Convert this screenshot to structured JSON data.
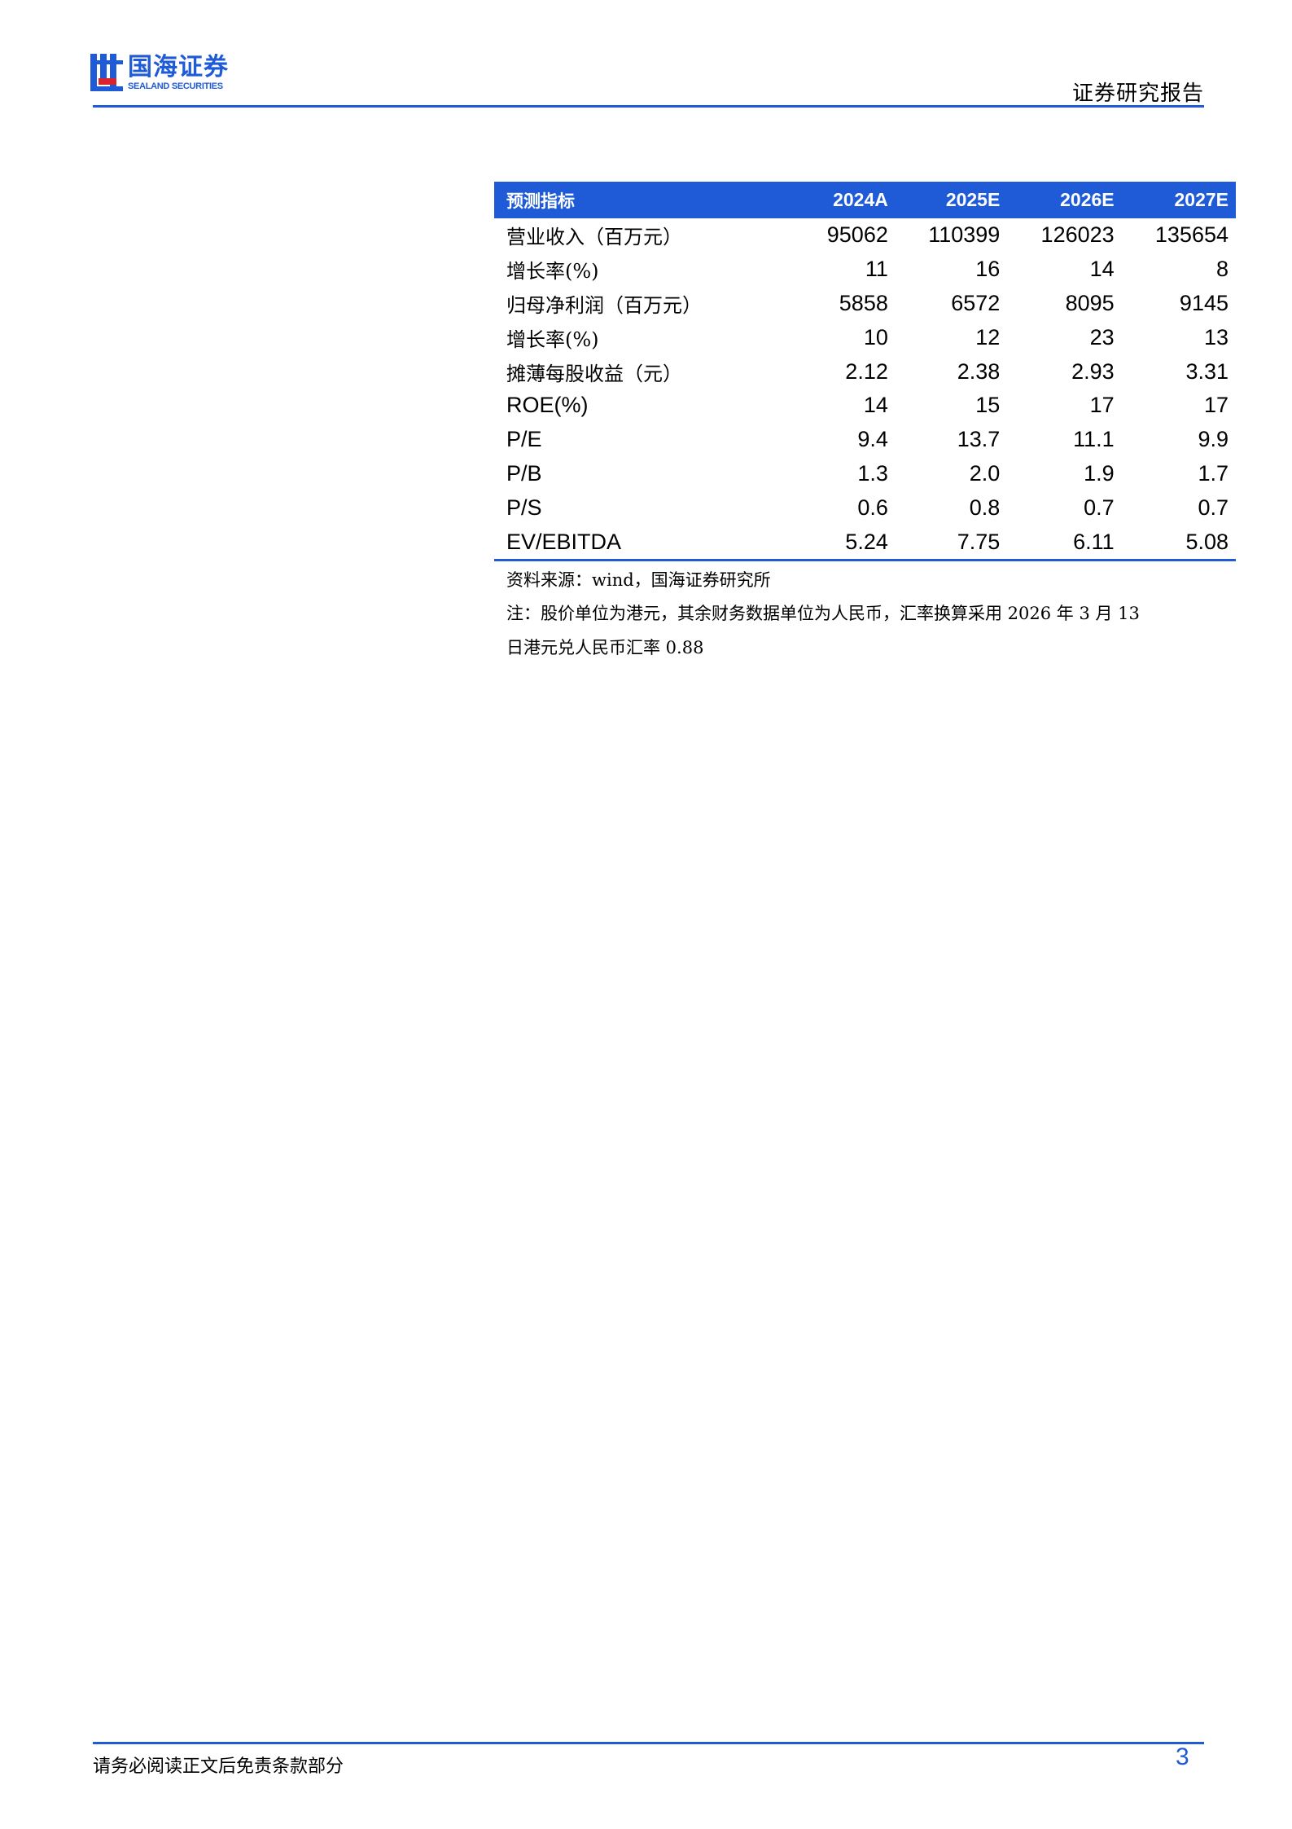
{
  "header": {
    "logo_cn": "国海证券",
    "logo_en": "SEALAND SECURITIES",
    "report_type": "证券研究报告"
  },
  "colors": {
    "brand": "#1f5bd6",
    "logo_red": "#d9232e"
  },
  "table": {
    "columns": [
      "预测指标",
      "2024A",
      "2025E",
      "2026E",
      "2027E"
    ],
    "rows": [
      {
        "label": "营业收入（百万元）",
        "values": [
          "95062",
          "110399",
          "126023",
          "135654"
        ]
      },
      {
        "label": "增长率(%)",
        "values": [
          "11",
          "16",
          "14",
          "8"
        ]
      },
      {
        "label": "归母净利润（百万元）",
        "values": [
          "5858",
          "6572",
          "8095",
          "9145"
        ]
      },
      {
        "label": "增长率(%)",
        "values": [
          "10",
          "12",
          "23",
          "13"
        ]
      },
      {
        "label": "摊薄每股收益（元）",
        "values": [
          "2.12",
          "2.38",
          "2.93",
          "3.31"
        ]
      },
      {
        "label": "ROE(%)",
        "values": [
          "14",
          "15",
          "17",
          "17"
        ]
      },
      {
        "label": "P/E",
        "values": [
          "9.4",
          "13.7",
          "11.1",
          "9.9"
        ]
      },
      {
        "label": "P/B",
        "values": [
          "1.3",
          "2.0",
          "1.9",
          "1.7"
        ]
      },
      {
        "label": "P/S",
        "values": [
          "0.6",
          "0.8",
          "0.7",
          "0.7"
        ]
      },
      {
        "label": "EV/EBITDA",
        "values": [
          "5.24",
          "7.75",
          "6.11",
          "5.08"
        ]
      }
    ]
  },
  "notes": {
    "source": "资料来源：wind，国海证券研究所",
    "note_line1": "注：股价单位为港元，其余财务数据单位为人民币，汇率换算采用 2026 年 3 月 13",
    "note_line2": "日港元兑人民币汇率 0.88"
  },
  "footer": {
    "disclaimer": "请务必阅读正文后免责条款部分",
    "page_number": "3"
  }
}
